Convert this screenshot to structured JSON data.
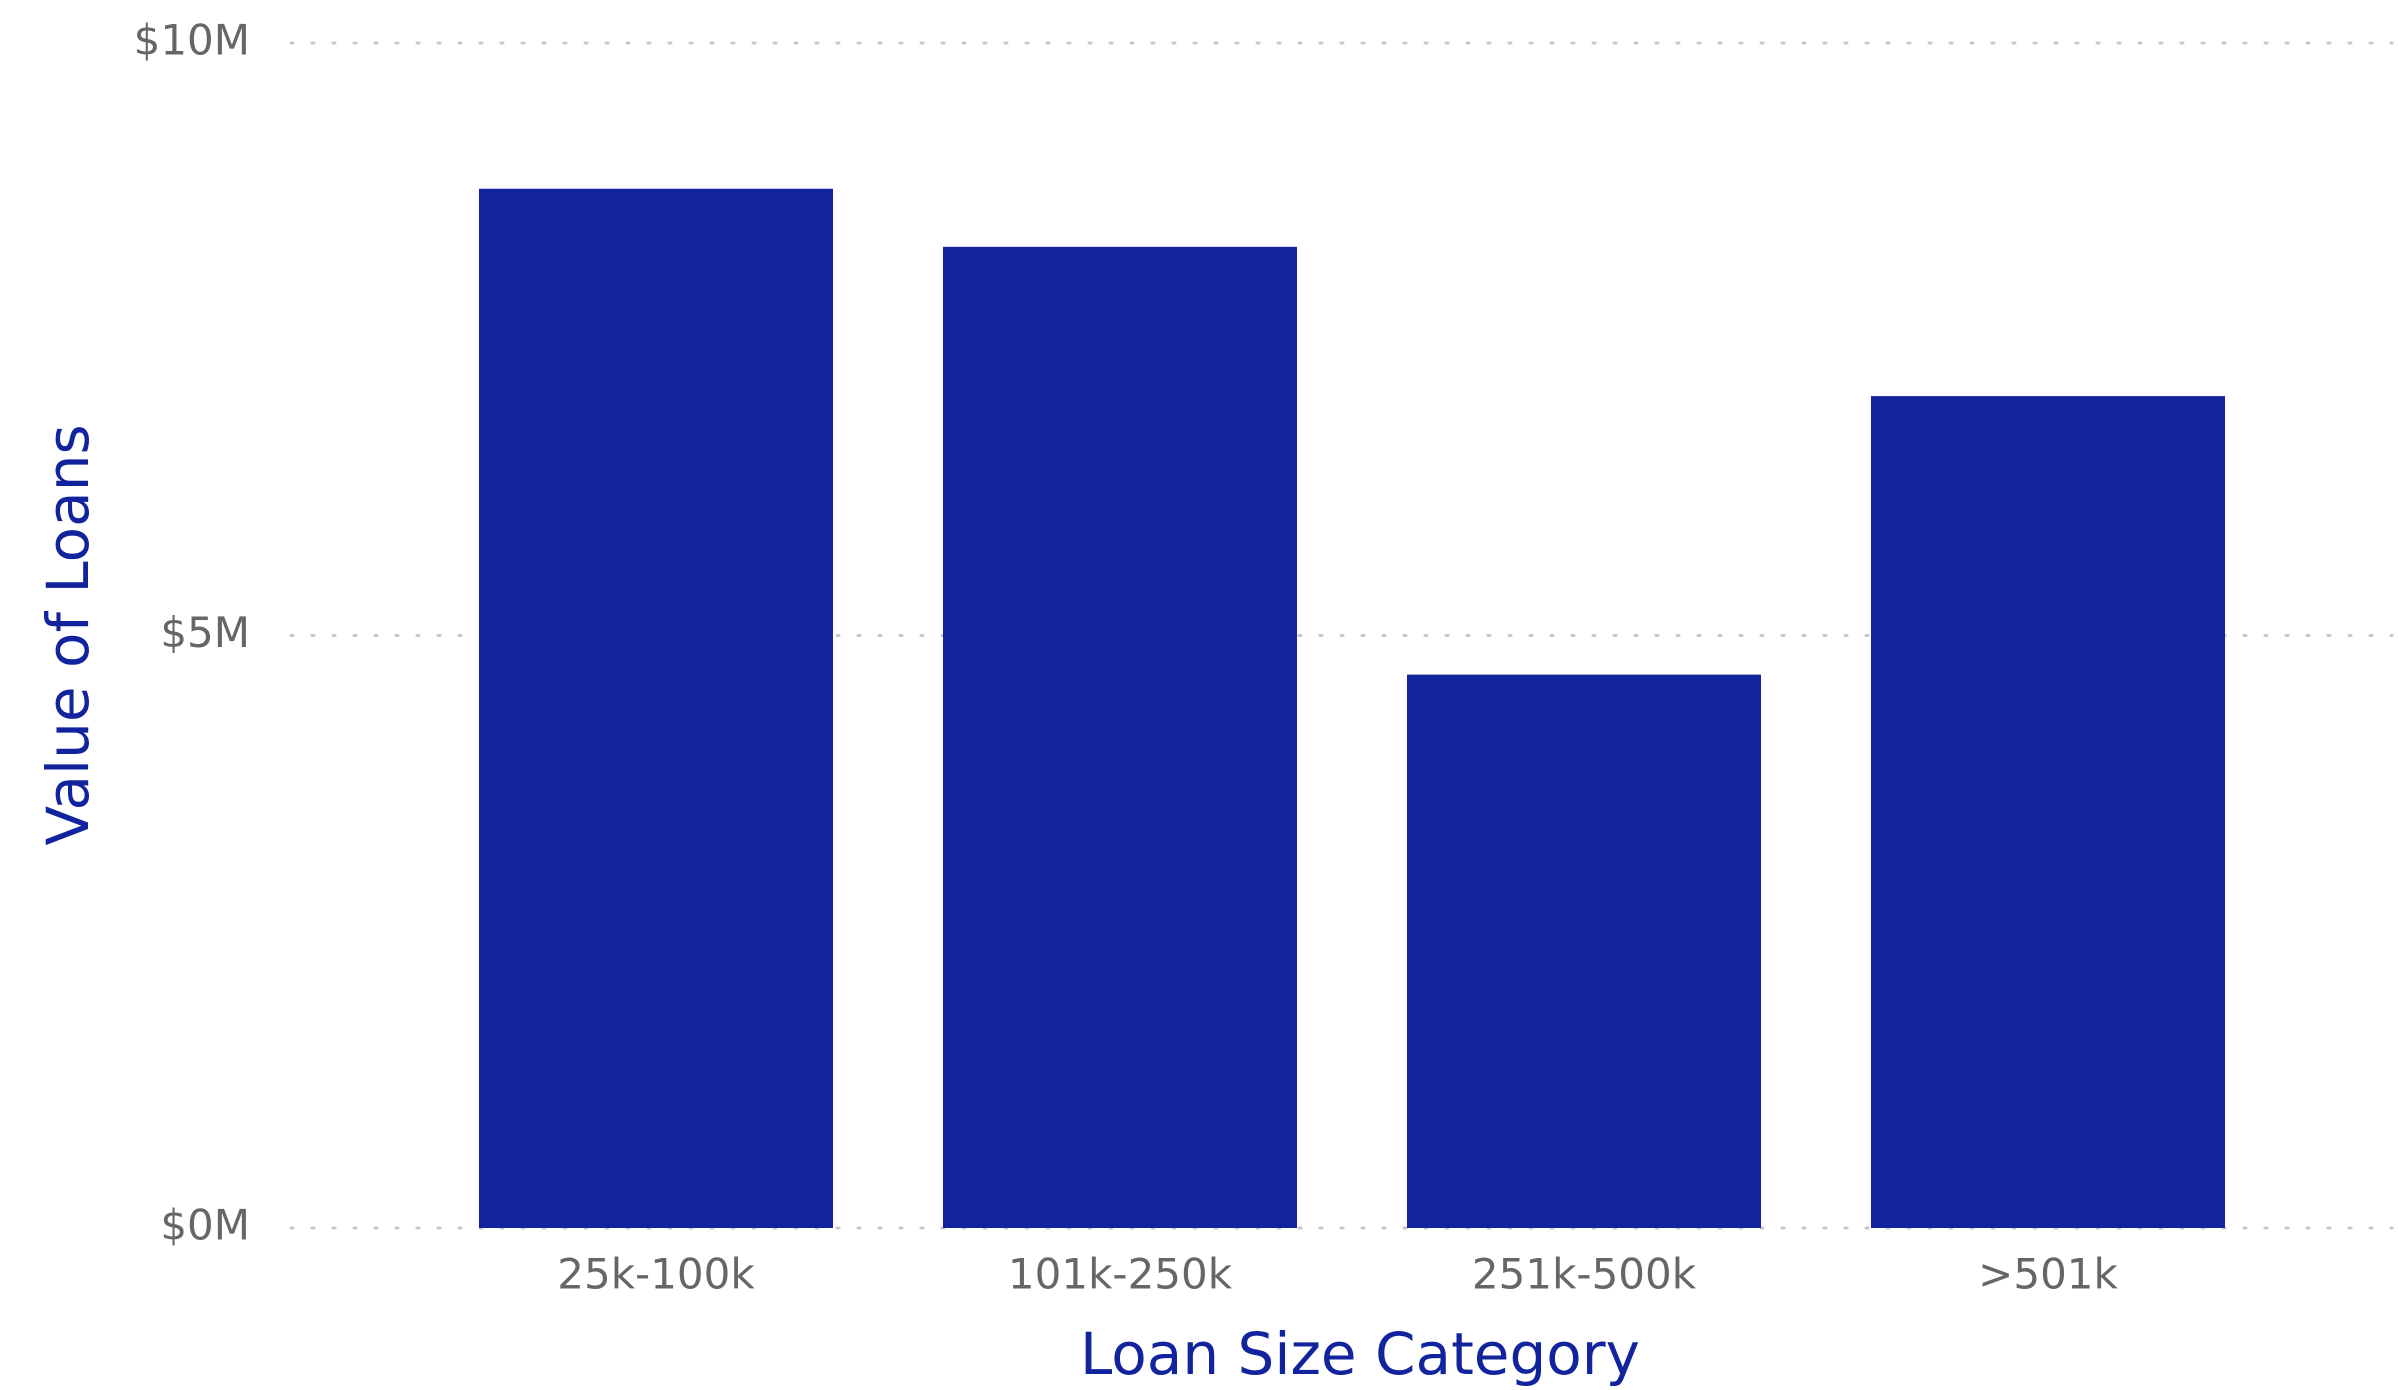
{
  "chart_data": {
    "type": "bar",
    "x_label": "Loan Size Category",
    "y_label": "Value of Loans",
    "categories": [
      "25k-100k",
      "101k-250k",
      "251k-500k",
      ">501k"
    ],
    "values": [
      8770000,
      8280000,
      4670000,
      7020000
    ],
    "color": "#12239E",
    "ylim": [
      0,
      10000000
    ],
    "yticks": [
      {
        "value": 0,
        "label": "$0M"
      },
      {
        "value": 5000000,
        "label": "$5M"
      },
      {
        "value": 10000000,
        "label": "$10M"
      }
    ],
    "grid": true
  }
}
